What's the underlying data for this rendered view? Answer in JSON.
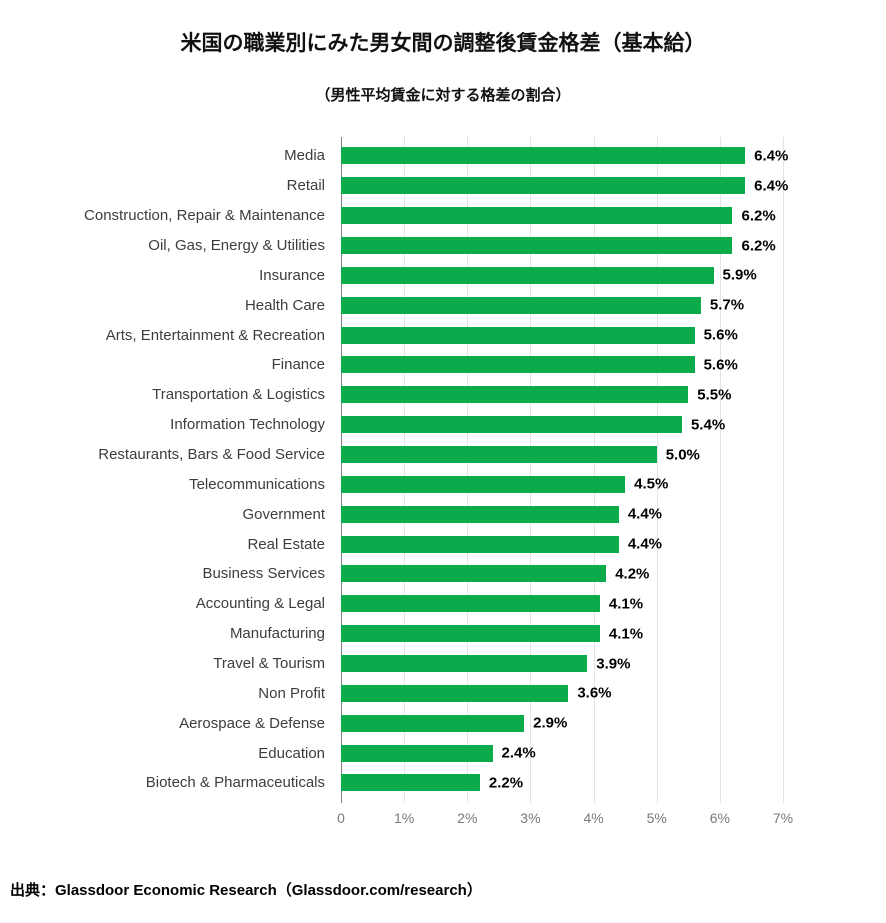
{
  "title": "米国の職業別にみた男女間の調整後賃金格差（基本給）",
  "subtitle": "（男性平均賃金に対する格差の割合）",
  "source": "出典：Glassdoor Economic Research（Glassdoor.com/research）",
  "colors": {
    "bar": "#0baa4b",
    "gridline": "#e3e3e3",
    "axis": "#7f7f7f",
    "tick_text": "#7a7a7a",
    "category_text": "#3d3d3d",
    "value_text": "#000000",
    "title_text": "#111111"
  },
  "chart_data": {
    "type": "bar",
    "orientation": "horizontal",
    "title": "米国の職業別にみた男女間の調整後賃金格差（基本給）",
    "subtitle": "（男性平均賃金に対する格差の割合）",
    "categories": [
      "Media",
      "Retail",
      "Construction, Repair & Maintenance",
      "Oil, Gas, Energy & Utilities",
      "Insurance",
      "Health Care",
      "Arts, Entertainment & Recreation",
      "Finance",
      "Transportation & Logistics",
      "Information Technology",
      "Restaurants, Bars & Food Service",
      "Telecommunications",
      "Government",
      "Real Estate",
      "Business Services",
      "Accounting & Legal",
      "Manufacturing",
      "Travel & Tourism",
      "Non Profit",
      "Aerospace & Defense",
      "Education",
      "Biotech & Pharmaceuticals"
    ],
    "values": [
      6.4,
      6.4,
      6.2,
      6.2,
      5.9,
      5.7,
      5.6,
      5.6,
      5.5,
      5.4,
      5.0,
      4.5,
      4.4,
      4.4,
      4.2,
      4.1,
      4.1,
      3.9,
      3.6,
      2.9,
      2.4,
      2.2
    ],
    "value_labels": [
      "6.4%",
      "6.4%",
      "6.2%",
      "6.2%",
      "5.9%",
      "5.7%",
      "5.6%",
      "5.6%",
      "5.5%",
      "5.4%",
      "5.0%",
      "4.5%",
      "4.4%",
      "4.4%",
      "4.2%",
      "4.1%",
      "4.1%",
      "3.9%",
      "3.6%",
      "2.9%",
      "2.4%",
      "2.2%"
    ],
    "x_ticks": [
      "0",
      "1%",
      "2%",
      "3%",
      "4%",
      "5%",
      "6%",
      "7%"
    ],
    "xlim": [
      0,
      7
    ],
    "grid": true,
    "legend": false,
    "source": "出典：Glassdoor Economic Research（Glassdoor.com/research）"
  }
}
